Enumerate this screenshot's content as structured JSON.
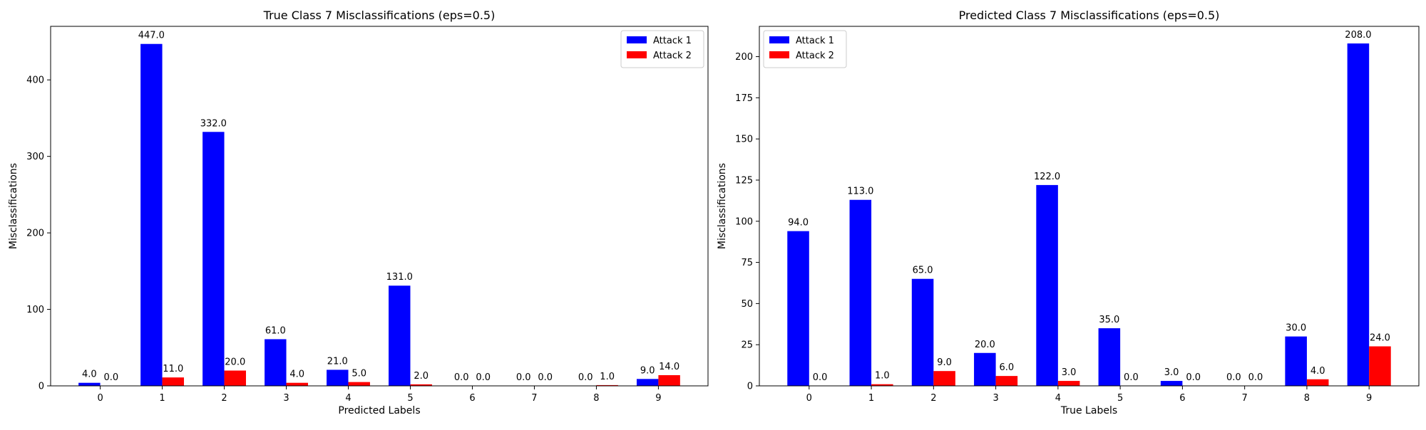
{
  "chart_data": [
    {
      "type": "bar",
      "title": "True Class 7 Misclassifications (eps=0.5)",
      "xlabel": "Predicted Labels",
      "ylabel": "Misclassifications",
      "categories": [
        "0",
        "1",
        "2",
        "3",
        "4",
        "5",
        "6",
        "7",
        "8",
        "9"
      ],
      "ylim": [
        0,
        470
      ],
      "yticks": [
        0,
        100,
        200,
        300,
        400
      ],
      "legend_position": "top-right",
      "series": [
        {
          "name": "Attack 1",
          "color": "#0000ff",
          "values": [
            4,
            447,
            332,
            61,
            21,
            131,
            0,
            0,
            0,
            9
          ],
          "labels": [
            "4.0",
            "447.0",
            "332.0",
            "61.0",
            "21.0",
            "131.0",
            "0.0",
            "0.0",
            "0.0",
            "9.0"
          ]
        },
        {
          "name": "Attack 2",
          "color": "#ff0000",
          "values": [
            0,
            11,
            20,
            4,
            5,
            2,
            0,
            0,
            1,
            14
          ],
          "labels": [
            "0.0",
            "11.0",
            "20.0",
            "4.0",
            "5.0",
            "2.0",
            "0.0",
            "0.0",
            "1.0",
            "14.0"
          ]
        }
      ]
    },
    {
      "type": "bar",
      "title": "Predicted Class 7 Misclassifications (eps=0.5)",
      "xlabel": "True Labels",
      "ylabel": "Misclassifications",
      "categories": [
        "0",
        "1",
        "2",
        "3",
        "4",
        "5",
        "6",
        "7",
        "8",
        "9"
      ],
      "ylim": [
        0,
        218.4
      ],
      "yticks": [
        0,
        25,
        50,
        75,
        100,
        125,
        150,
        175,
        200
      ],
      "legend_position": "top-left",
      "series": [
        {
          "name": "Attack 1",
          "color": "#0000ff",
          "values": [
            94,
            113,
            65,
            20,
            122,
            35,
            3,
            0,
            30,
            208
          ],
          "labels": [
            "94.0",
            "113.0",
            "65.0",
            "20.0",
            "122.0",
            "35.0",
            "3.0",
            "0.0",
            "30.0",
            "208.0"
          ]
        },
        {
          "name": "Attack 2",
          "color": "#ff0000",
          "values": [
            0,
            1,
            9,
            6,
            3,
            0,
            0,
            0,
            4,
            24
          ],
          "labels": [
            "0.0",
            "1.0",
            "9.0",
            "6.0",
            "3.0",
            "0.0",
            "0.0",
            "0.0",
            "4.0",
            "24.0"
          ]
        }
      ]
    }
  ]
}
